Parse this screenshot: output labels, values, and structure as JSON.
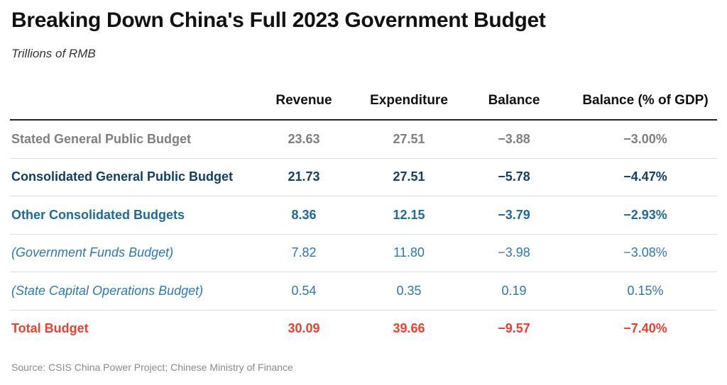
{
  "title": "Breaking Down China's Full 2023 Government Budget",
  "subtitle": "Trillions of RMB",
  "source": "Source: CSIS China Power Project; Chinese Ministry of Finance",
  "chart_data": {
    "type": "table",
    "title": "Breaking Down China's Full 2023 Government Budget",
    "subtitle": "Trillions of RMB",
    "columns": [
      "",
      "Revenue",
      "Expenditure",
      "Balance",
      "Balance (% of GDP)"
    ],
    "rows": [
      {
        "label": "Stated General Public Budget",
        "values": [
          "23.63",
          "27.51",
          "−3.88",
          "−3.00%"
        ],
        "color": "#7f7f7f",
        "bold": true,
        "italic": false
      },
      {
        "label": "Consolidated General Public Budget",
        "values": [
          "21.73",
          "27.51",
          "−5.78",
          "−4.47%"
        ],
        "color": "#123f66",
        "bold": true,
        "italic": false
      },
      {
        "label": "Other Consolidated Budgets",
        "values": [
          "8.36",
          "12.15",
          "−3.79",
          "−2.93%"
        ],
        "color": "#1a6aa5",
        "bold": true,
        "italic": false
      },
      {
        "label": "(Government Funds Budget)",
        "values": [
          "7.82",
          "11.80",
          "−3.98",
          "−3.08%"
        ],
        "color": "#2a78b8",
        "bold": false,
        "italic": true
      },
      {
        "label": "(State Capital Operations Budget)",
        "values": [
          "0.54",
          "0.35",
          "0.19",
          "0.15%"
        ],
        "color": "#2a78b8",
        "bold": false,
        "italic": true
      },
      {
        "label": "Total Budget",
        "values": [
          "30.09",
          "39.66",
          "−9.57",
          "−7.40%"
        ],
        "color": "#e8412c",
        "bold": true,
        "italic": false
      }
    ]
  }
}
